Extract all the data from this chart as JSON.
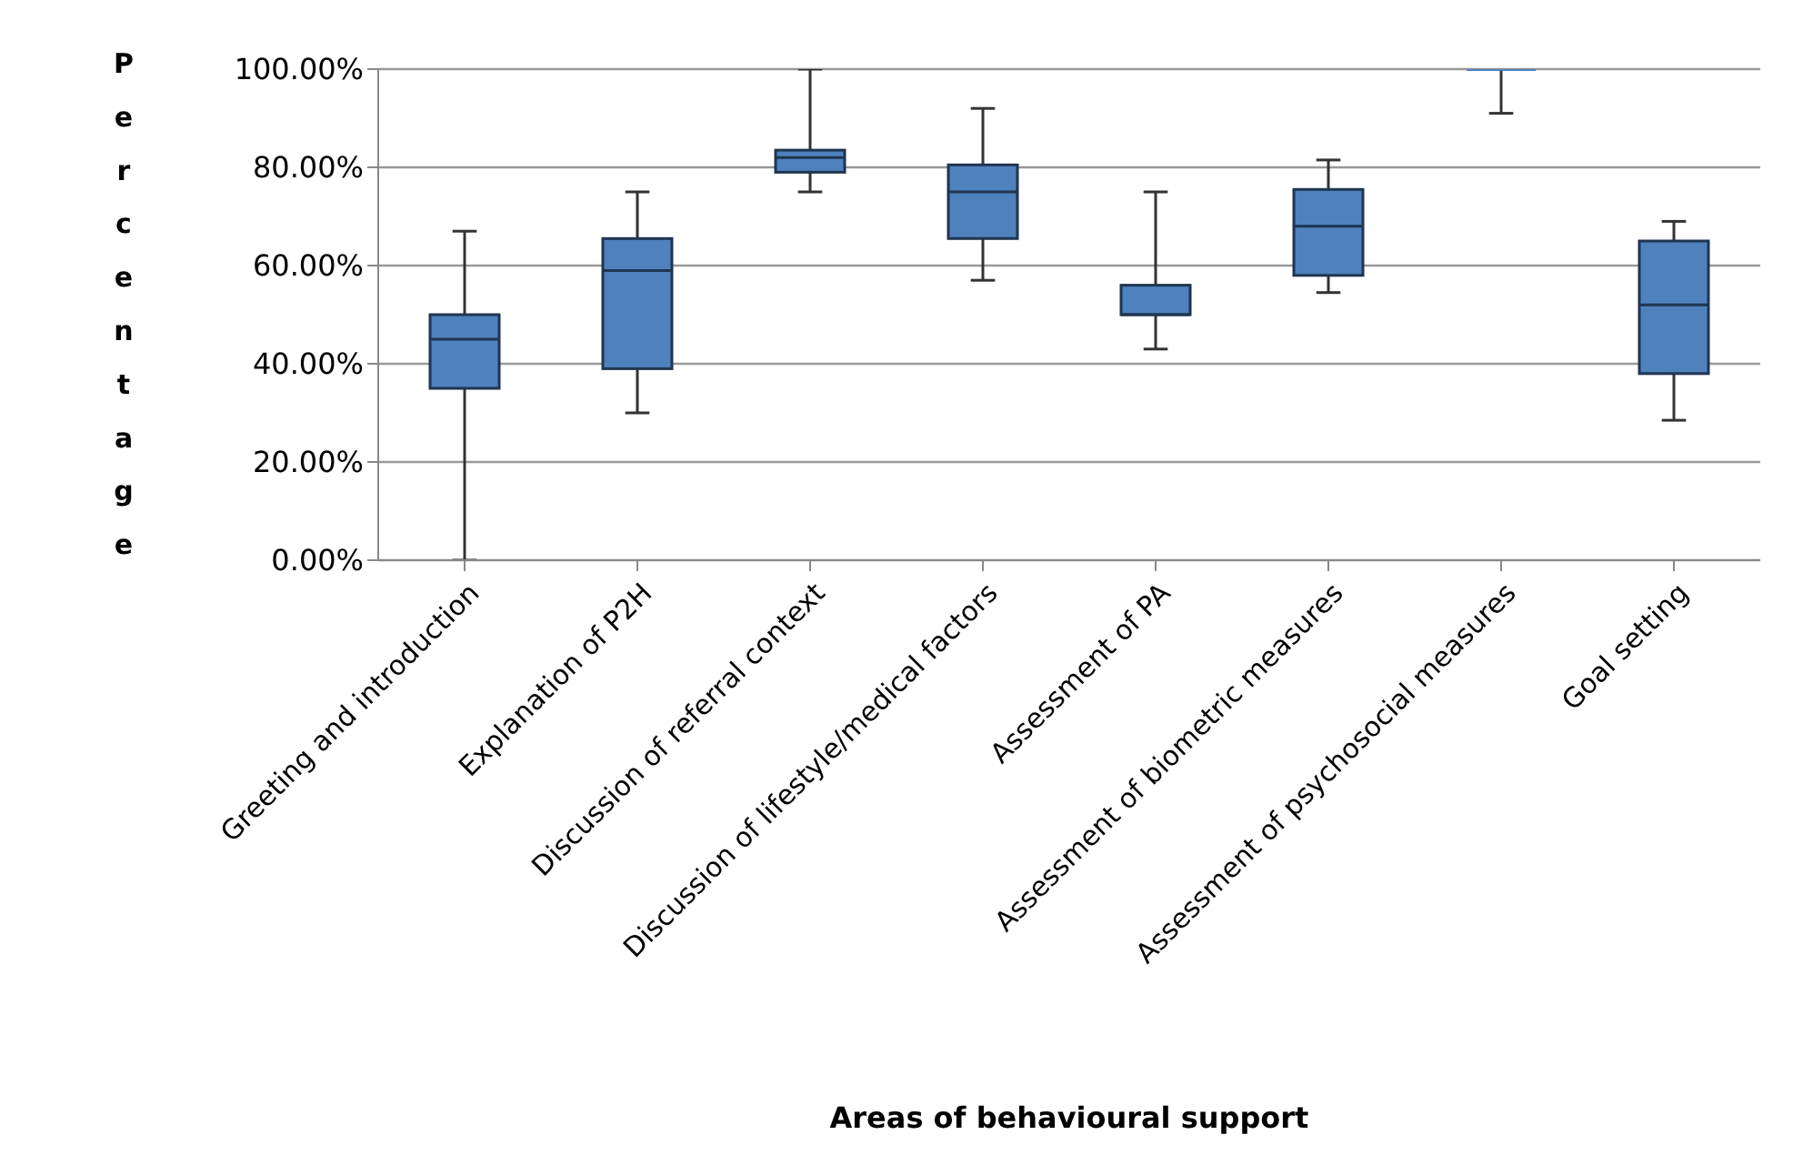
{
  "chart_data": {
    "type": "box",
    "xlabel": "Areas of behavioural support",
    "ylabel": "Percentage",
    "categories": [
      "Greeting and introduction",
      "Explanation of P2H",
      "Discussion of referral context",
      "Discussion of lifestyle/medical factors",
      "Assessment of PA",
      "Assessment of biometric measures",
      "Assessment of psychosocial measures",
      "Goal setting"
    ],
    "color": "#4f81bd",
    "boxes": [
      {
        "low": 0,
        "q1": 35,
        "median": 45,
        "q3": 50,
        "high": 67
      },
      {
        "low": 30,
        "q1": 39,
        "median": 59,
        "q3": 65.5,
        "high": 75
      },
      {
        "low": 75,
        "q1": 79,
        "median": 82,
        "q3": 83.5,
        "high": 100
      },
      {
        "low": 57,
        "q1": 65.5,
        "median": 75,
        "q3": 80.5,
        "high": 92
      },
      {
        "low": 43,
        "q1": 50,
        "median": 50,
        "q3": 56,
        "high": 75
      },
      {
        "low": 54.5,
        "q1": 58,
        "median": 68,
        "q3": 75.5,
        "high": 81.5
      },
      {
        "low": 91,
        "q1": 100,
        "median": 100,
        "q3": 100,
        "high": 100
      },
      {
        "low": 28.5,
        "q1": 38,
        "median": 52,
        "q3": 65,
        "high": 69
      }
    ],
    "ylim": [
      0,
      100
    ],
    "yticks": [
      {
        "value": 0,
        "label": "0.00%"
      },
      {
        "value": 20,
        "label": "20.00%"
      },
      {
        "value": 40,
        "label": "40.00%"
      },
      {
        "value": 60,
        "label": "60.00%"
      },
      {
        "value": 80,
        "label": "80.00%"
      },
      {
        "value": 100,
        "label": "100.00%"
      }
    ],
    "grid": "y",
    "legend": false
  }
}
